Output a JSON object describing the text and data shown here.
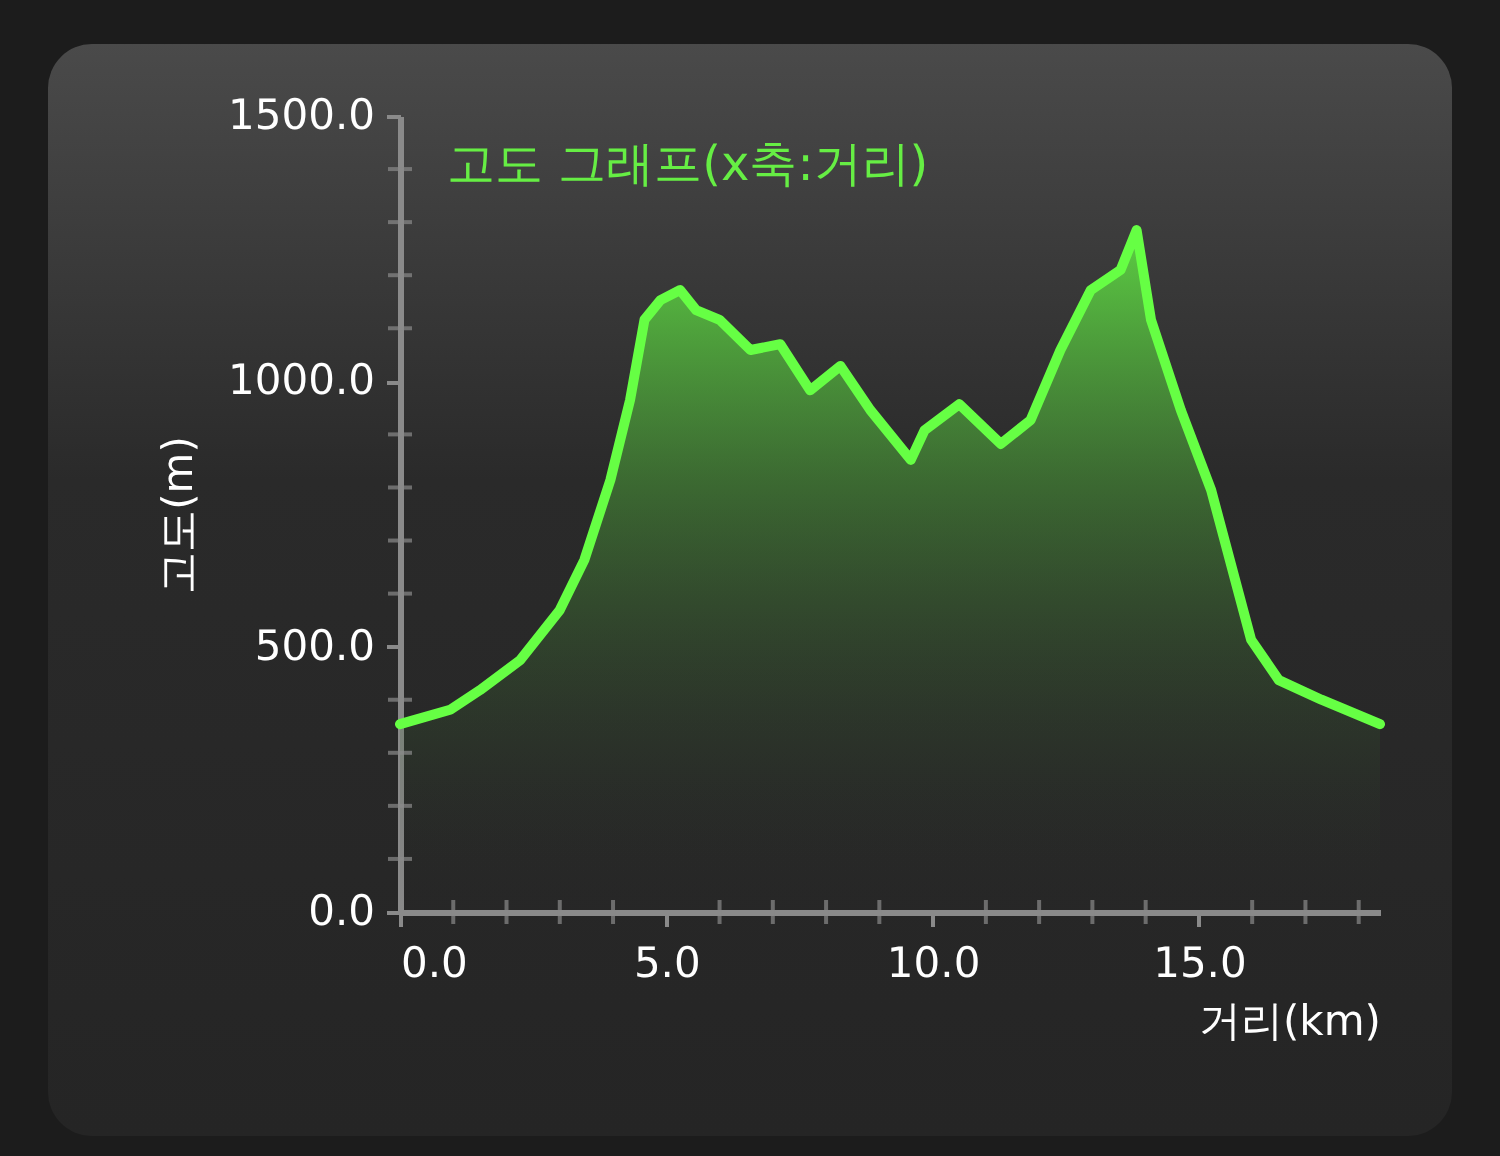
{
  "chart_data": {
    "type": "area",
    "title": "고도 그래프(x축:거리)",
    "xlabel": "거리(km)",
    "ylabel": "고도(m)",
    "xlim": [
      0,
      18.4
    ],
    "ylim": [
      0,
      1500
    ],
    "xticks": [
      {
        "value": 0,
        "label": "0.0"
      },
      {
        "value": 1,
        "label": null
      },
      {
        "value": 2,
        "label": null
      },
      {
        "value": 3,
        "label": null
      },
      {
        "value": 4,
        "label": null
      },
      {
        "value": 5,
        "label": "5.0"
      },
      {
        "value": 6,
        "label": null
      },
      {
        "value": 7,
        "label": null
      },
      {
        "value": 8,
        "label": null
      },
      {
        "value": 9,
        "label": null
      },
      {
        "value": 10,
        "label": "10.0"
      },
      {
        "value": 11,
        "label": null
      },
      {
        "value": 12,
        "label": null
      },
      {
        "value": 13,
        "label": null
      },
      {
        "value": 14,
        "label": null
      },
      {
        "value": 15,
        "label": "15.0"
      },
      {
        "value": 16,
        "label": null
      },
      {
        "value": 17,
        "label": null
      },
      {
        "value": 18,
        "label": null
      }
    ],
    "yticks": [
      {
        "value": 0,
        "label": "0.0"
      },
      {
        "value": 100,
        "label": null
      },
      {
        "value": 200,
        "label": null
      },
      {
        "value": 300,
        "label": null
      },
      {
        "value": 400,
        "label": null
      },
      {
        "value": 500,
        "label": "500.0"
      },
      {
        "value": 600,
        "label": null
      },
      {
        "value": 700,
        "label": null
      },
      {
        "value": 800,
        "label": null
      },
      {
        "value": 900,
        "label": null
      },
      {
        "value": 1000,
        "label": "1000.0"
      },
      {
        "value": 1100,
        "label": null
      },
      {
        "value": 1200,
        "label": null
      },
      {
        "value": 1300,
        "label": null
      },
      {
        "value": 1400,
        "label": null
      },
      {
        "value": 1500,
        "label": "1500.0"
      }
    ],
    "series": [
      {
        "color": "#66ff44",
        "x": [
          0,
          0.94,
          1.5,
          2.26,
          3.0,
          3.46,
          3.95,
          4.32,
          4.59,
          4.89,
          5.26,
          5.56,
          6.0,
          6.58,
          7.14,
          7.7,
          8.27,
          8.83,
          9.59,
          9.85,
          10.5,
          11.28,
          11.84,
          12.4,
          12.97,
          13.53,
          13.83,
          14.1,
          14.66,
          15.23,
          15.98,
          16.5,
          17.3,
          18.4
        ],
        "values": [
          354,
          381,
          418,
          475,
          569,
          663,
          814,
          965,
          1116,
          1153,
          1172,
          1134,
          1116,
          1059,
          1070,
          983,
          1029,
          946,
          852,
          908,
          957,
          882,
          927,
          1059,
          1172,
          1210,
          1285,
          1116,
          946,
          795,
          513,
          437,
          400,
          354
        ]
      }
    ]
  }
}
